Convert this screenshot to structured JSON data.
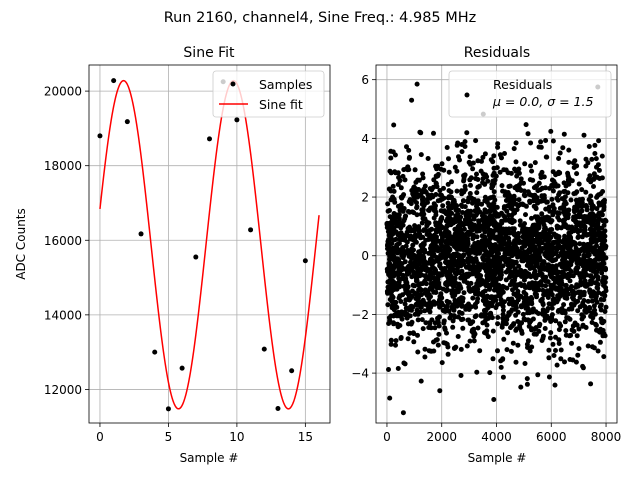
{
  "suptitle": "Run 2160, channel4, Sine Freq.: 4.985 MHz",
  "chart_data": [
    {
      "type": "scatter+line",
      "title": "Sine Fit",
      "xlabel": "Sample #",
      "ylabel": "ADC Counts",
      "xlim": [
        -0.8,
        16.8
      ],
      "ylim": [
        11100,
        20700
      ],
      "xticks": [
        0,
        5,
        10,
        15
      ],
      "yticks": [
        12000,
        14000,
        16000,
        18000,
        20000
      ],
      "grid": true,
      "legend": {
        "location": "top-right",
        "entries": [
          "Samples",
          "Sine fit"
        ]
      },
      "series": [
        {
          "name": "Samples",
          "kind": "scatter",
          "color": "#000000",
          "x": [
            0,
            1,
            2,
            3,
            4,
            5,
            6,
            7,
            8,
            9,
            10,
            11,
            12,
            13,
            14,
            15
          ],
          "y": [
            18800,
            20280,
            19180,
            16170,
            13000,
            11480,
            12570,
            15550,
            18720,
            20250,
            19230,
            16280,
            13080,
            11490,
            12500,
            15450
          ]
        },
        {
          "name": "Sine fit",
          "kind": "line",
          "color": "#ff0000",
          "model": {
            "offset": 15880,
            "amplitude": 4400,
            "period": 8.025,
            "phase_rad": 0.22
          },
          "x_range": [
            0,
            16
          ]
        }
      ]
    },
    {
      "type": "scatter",
      "title": "Residuals",
      "xlabel": "Sample #",
      "ylabel": "",
      "xlim": [
        -400,
        8400
      ],
      "ylim": [
        -5.7,
        6.5
      ],
      "xticks": [
        0,
        2000,
        4000,
        6000,
        8000
      ],
      "yticks": [
        -4,
        -2,
        0,
        2,
        4,
        6
      ],
      "grid": true,
      "legend": {
        "location": "top-right",
        "entries": [
          "Residuals",
          "μ = 0.0, σ = 1.5"
        ]
      },
      "series": [
        {
          "name": "Residuals",
          "kind": "scatter",
          "color": "#000000",
          "n_points": 8000,
          "mean": 0.0,
          "std": 1.5,
          "x_range": [
            0,
            7999
          ],
          "noted_outliers": [
            [
              1100,
              5.85
            ],
            [
              900,
              5.3
            ],
            [
              7700,
              5.75
            ],
            [
              600,
              -5.35
            ],
            [
              3900,
              -4.9
            ],
            [
              100,
              -4.85
            ]
          ]
        }
      ]
    }
  ]
}
